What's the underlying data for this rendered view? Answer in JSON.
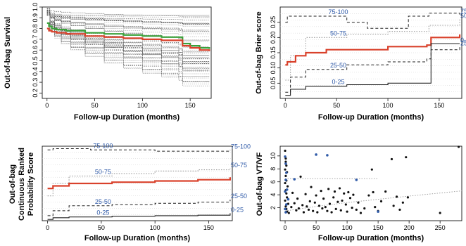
{
  "colors": {
    "axis": "#111111",
    "red": "#d9412b",
    "green": "#3aa13a",
    "blue": "#2f5aa8",
    "grey": "#9a9a9a",
    "dark": "#222222"
  },
  "chart_data": [
    {
      "type": "line",
      "ylabel": "Out-of-bag Survival",
      "xlabel": "Follow-up Duration (months)",
      "xlim": [
        -5,
        172
      ],
      "ylim": [
        0.15,
        1.0
      ],
      "xticks": [
        "0",
        "50",
        "100",
        "150"
      ],
      "yticks": [
        "0.2",
        "0.3",
        "0.4",
        "0.5",
        "0.6",
        "0.7",
        "0.8",
        "0.9",
        "1.0"
      ],
      "series": [
        {
          "style": "green",
          "x": [
            0,
            2,
            5,
            10,
            20,
            40,
            60,
            80,
            100,
            120,
            138,
            142,
            150,
            160,
            170
          ],
          "y": [
            0.85,
            0.82,
            0.8,
            0.79,
            0.78,
            0.76,
            0.75,
            0.74,
            0.73,
            0.72,
            0.72,
            0.66,
            0.64,
            0.62,
            0.61
          ]
        },
        {
          "style": "red",
          "x": [
            0,
            2,
            5,
            10,
            20,
            40,
            60,
            80,
            100,
            120,
            138,
            142,
            150,
            160,
            170
          ],
          "y": [
            0.8,
            0.78,
            0.77,
            0.76,
            0.75,
            0.73,
            0.72,
            0.71,
            0.7,
            0.69,
            0.69,
            0.64,
            0.62,
            0.6,
            0.59
          ]
        }
      ]
    },
    {
      "type": "line",
      "ylabel": "Out-of-bag Brier score",
      "xlabel": "Follow-up Duration (months)",
      "xlim": [
        -5,
        172
      ],
      "ylim": [
        0.0,
        0.3
      ],
      "xticks": [
        "0",
        "50",
        "100",
        "150"
      ],
      "yticks": [
        "0.05",
        "0.10",
        "0.15",
        "0.20",
        "0.25"
      ],
      "series": [
        {
          "name": "75-100",
          "style": "dashed",
          "x": [
            0,
            2,
            20,
            60,
            80,
            120,
            140,
            170
          ],
          "y": [
            0.25,
            0.27,
            0.27,
            0.25,
            0.23,
            0.27,
            0.28,
            0.275
          ]
        },
        {
          "name": "50-75",
          "style": "dotted",
          "x": [
            0,
            5,
            20,
            60,
            100,
            140,
            170
          ],
          "y": [
            0.06,
            0.14,
            0.2,
            0.21,
            0.22,
            0.24,
            0.26
          ]
        },
        {
          "style": "red",
          "x": [
            0,
            2,
            5,
            10,
            20,
            40,
            60,
            100,
            138,
            142,
            170
          ],
          "y": [
            0.11,
            0.12,
            0.12,
            0.14,
            0.15,
            0.16,
            0.16,
            0.17,
            0.175,
            0.2,
            0.21
          ]
        },
        {
          "name": "25-50",
          "style": "dashed",
          "x": [
            0,
            5,
            20,
            60,
            100,
            138,
            142,
            170
          ],
          "y": [
            0.02,
            0.07,
            0.095,
            0.11,
            0.12,
            0.13,
            0.16,
            0.17
          ]
        },
        {
          "name": "0-25",
          "style": "solid-dark",
          "x": [
            0,
            5,
            20,
            60,
            100,
            138,
            142,
            170
          ],
          "y": [
            0.01,
            0.03,
            0.04,
            0.045,
            0.05,
            0.05,
            0.18,
            0.18
          ]
        }
      ]
    },
    {
      "type": "line",
      "ylabel": "Out-of-bag Continuous Ranked Probability Score",
      "xlabel": "Follow-up Duration (months)",
      "xlim": [
        -5,
        172
      ],
      "ylim": [
        0.0,
        0.3
      ],
      "xticks": [
        "0",
        "50",
        "100",
        "150"
      ],
      "series": [
        {
          "name": "75-100",
          "style": "dashed",
          "x": [
            0,
            5,
            40,
            100,
            170
          ],
          "y": [
            0.285,
            0.29,
            0.285,
            0.28,
            0.285
          ]
        },
        {
          "name": "50-75",
          "style": "dotted",
          "x": [
            0,
            5,
            20,
            60,
            100,
            140,
            170
          ],
          "y": [
            0.1,
            0.15,
            0.18,
            0.19,
            0.2,
            0.205,
            0.21
          ]
        },
        {
          "style": "red",
          "x": [
            0,
            5,
            20,
            60,
            100,
            140,
            170
          ],
          "y": [
            0.13,
            0.14,
            0.15,
            0.155,
            0.16,
            0.165,
            0.175
          ]
        },
        {
          "name": "25-50",
          "style": "dashed",
          "x": [
            0,
            5,
            20,
            60,
            100,
            140,
            170
          ],
          "y": [
            0.02,
            0.04,
            0.06,
            0.065,
            0.07,
            0.075,
            0.085
          ]
        },
        {
          "name": "0-25",
          "style": "solid-dark",
          "x": [
            0,
            5,
            20,
            60,
            100,
            140,
            170
          ],
          "y": [
            0.005,
            0.012,
            0.015,
            0.018,
            0.02,
            0.022,
            0.03
          ]
        }
      ]
    },
    {
      "type": "scatter",
      "ylabel": "Out-of-bag VT/VF",
      "xlabel": "Follow-up Duration (months)",
      "xlim": [
        -8,
        285
      ],
      "ylim": [
        0,
        11.5
      ],
      "xticks": [
        "0",
        "50",
        "100",
        "150",
        "200",
        "250"
      ],
      "yticks": [
        "2",
        "4",
        "6",
        "8",
        "10"
      ],
      "trend": {
        "x": [
          0,
          50,
          100,
          150,
          200,
          285
        ],
        "y": [
          1.5,
          2.2,
          2.8,
          3.3,
          3.8,
          4.6
        ]
      },
      "trend_upper": {
        "x": [
          0,
          150
        ],
        "y": [
          6.5,
          6.5
        ]
      },
      "black_points": [
        [
          0,
          10.8
        ],
        [
          1,
          9.6
        ],
        [
          1,
          9.1
        ],
        [
          2,
          8.5
        ],
        [
          0,
          7.9
        ],
        [
          3,
          7.5
        ],
        [
          1,
          6.9
        ],
        [
          2,
          6.2
        ],
        [
          0,
          5.8
        ],
        [
          4,
          5.3
        ],
        [
          1,
          4.7
        ],
        [
          2,
          4.2
        ],
        [
          3,
          3.6
        ],
        [
          0,
          3.1
        ],
        [
          5,
          2.6
        ],
        [
          1,
          2.2
        ],
        [
          2,
          1.8
        ],
        [
          3,
          1.4
        ],
        [
          6,
          1.2
        ],
        [
          10,
          2.1
        ],
        [
          12,
          4.3
        ],
        [
          15,
          2.7
        ],
        [
          18,
          1.6
        ],
        [
          20,
          3.4
        ],
        [
          22,
          1.9
        ],
        [
          25,
          6.8
        ],
        [
          28,
          2.4
        ],
        [
          30,
          1.3
        ],
        [
          33,
          4.1
        ],
        [
          35,
          2.2
        ],
        [
          38,
          1.7
        ],
        [
          40,
          3.0
        ],
        [
          42,
          5.2
        ],
        [
          45,
          1.5
        ],
        [
          48,
          2.8
        ],
        [
          50,
          3.9
        ],
        [
          52,
          1.3
        ],
        [
          55,
          2.3
        ],
        [
          58,
          4.6
        ],
        [
          60,
          1.9
        ],
        [
          62,
          3.4
        ],
        [
          65,
          2.1
        ],
        [
          68,
          1.5
        ],
        [
          70,
          4.9
        ],
        [
          72,
          2.6
        ],
        [
          75,
          1.3
        ],
        [
          78,
          3.6
        ],
        [
          80,
          4.5
        ],
        [
          82,
          1.8
        ],
        [
          85,
          2.9
        ],
        [
          88,
          5.0
        ],
        [
          90,
          1.6
        ],
        [
          92,
          3.1
        ],
        [
          95,
          4.2
        ],
        [
          98,
          2.5
        ],
        [
          100,
          1.4
        ],
        [
          102,
          4.4
        ],
        [
          105,
          3.5
        ],
        [
          108,
          2.0
        ],
        [
          110,
          4.0
        ],
        [
          115,
          1.7
        ],
        [
          118,
          2.8
        ],
        [
          122,
          1.2
        ],
        [
          128,
          1.9
        ],
        [
          135,
          3.9
        ],
        [
          140,
          7.9
        ],
        [
          142,
          4.4
        ],
        [
          145,
          2.1
        ],
        [
          150,
          1.5
        ],
        [
          155,
          3.0
        ],
        [
          162,
          4.5
        ],
        [
          172,
          9.5
        ],
        [
          175,
          2.3
        ],
        [
          180,
          3.7
        ],
        [
          185,
          1.7
        ],
        [
          190,
          2.8
        ],
        [
          195,
          9.8
        ],
        [
          198,
          3.6
        ],
        [
          250,
          1.2
        ],
        [
          280,
          11.4
        ]
      ],
      "blue_points": [
        [
          0,
          9.9
        ],
        [
          1,
          8.8
        ],
        [
          2,
          7.4
        ],
        [
          1,
          6.3
        ],
        [
          0,
          4.5
        ],
        [
          2,
          2.5
        ],
        [
          1,
          1.3
        ],
        [
          5,
          3.3
        ],
        [
          15,
          6.4
        ],
        [
          50,
          10.2
        ],
        [
          68,
          10.1
        ],
        [
          115,
          6.3
        ],
        [
          150,
          1.4
        ],
        [
          0,
          1.8
        ],
        [
          3,
          4.8
        ]
      ]
    }
  ]
}
